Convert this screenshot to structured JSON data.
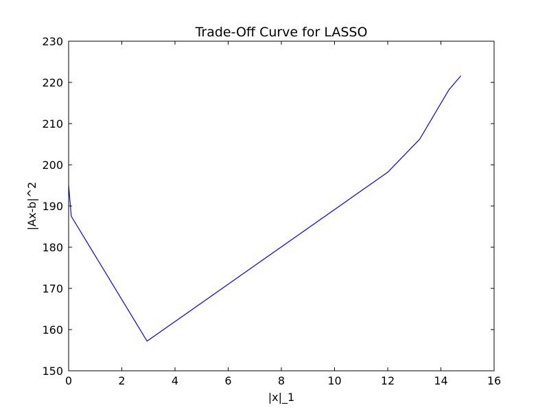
{
  "chart_data": {
    "type": "line",
    "title": "Trade-Off Curve for LASSO",
    "xlabel": "|x|_1",
    "ylabel": "|Ax-b|^2",
    "xlim": [
      0,
      16
    ],
    "ylim": [
      150,
      230
    ],
    "xticks": [
      0,
      2,
      4,
      6,
      8,
      10,
      12,
      14,
      16
    ],
    "yticks": [
      150,
      160,
      170,
      180,
      190,
      200,
      210,
      220,
      230
    ],
    "grid": false,
    "series": [
      {
        "color": "#0000ff",
        "points": [
          {
            "x": 0.0,
            "y": 195.0
          },
          {
            "x": 0.1,
            "y": 187.5
          },
          {
            "x": 2.95,
            "y": 157.2
          },
          {
            "x": 12.0,
            "y": 198.2
          },
          {
            "x": 13.2,
            "y": 206.2
          },
          {
            "x": 14.3,
            "y": 218.2
          },
          {
            "x": 14.75,
            "y": 221.6
          }
        ]
      }
    ]
  }
}
